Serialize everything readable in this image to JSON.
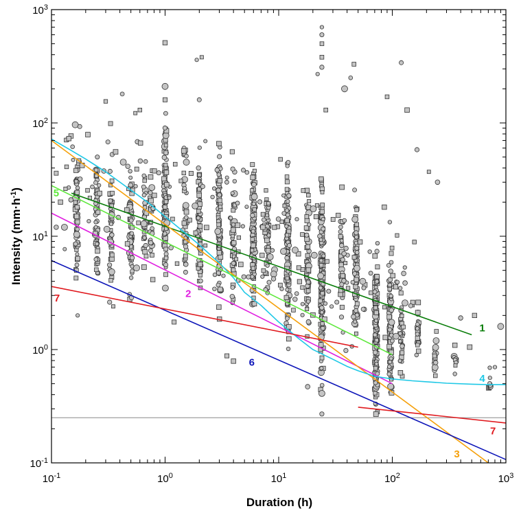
{
  "chart_data": {
    "type": "scatter",
    "xscale": "log",
    "yscale": "log",
    "xlim": [
      0.1,
      1000
    ],
    "ylim": [
      0.1,
      1000
    ],
    "xlabel": "Duration (h)",
    "ylabel": "Intensity (mm·h⁻¹)",
    "grid": false,
    "x_tick_labels": [
      {
        "value": 0.1,
        "base": "10",
        "exp": "-1"
      },
      {
        "value": 1,
        "base": "10",
        "exp": "0"
      },
      {
        "value": 10,
        "base": "10",
        "exp": "1"
      },
      {
        "value": 100,
        "base": "10",
        "exp": "2"
      },
      {
        "value": 1000,
        "base": "10",
        "exp": "3"
      }
    ],
    "y_tick_labels": [
      {
        "value": 0.1,
        "base": "10",
        "exp": "-1"
      },
      {
        "value": 1,
        "base": "10",
        "exp": "0"
      },
      {
        "value": 10,
        "base": "10",
        "exp": "1"
      },
      {
        "value": 100,
        "base": "10",
        "exp": "2"
      },
      {
        "value": 1000,
        "base": "10",
        "exp": "3"
      }
    ],
    "reference_line": {
      "y": 0.25,
      "color": "#888888"
    },
    "marker_style": {
      "fill": "#c4c4c4",
      "stroke": "#333333"
    },
    "curves": [
      {
        "id": "1",
        "label": "1",
        "color": "#0a7d0a",
        "x": [
          0.15,
          500
        ],
        "y": [
          24,
          1.35
        ],
        "label_pos": {
          "x": 620,
          "y": 1.45
        }
      },
      {
        "id": "2",
        "label": "2",
        "color": "#e01ee0",
        "x": [
          0.1,
          100
        ],
        "y": [
          16,
          0.5
        ],
        "label_pos": {
          "x": 1.6,
          "y": 2.9
        }
      },
      {
        "id": "3",
        "label": "3",
        "color": "#f5a00a",
        "x": [
          0.1,
          700
        ],
        "y": [
          70,
          0.1
        ],
        "label_pos": {
          "x": 370,
          "y": 0.112
        }
      },
      {
        "id": "4",
        "label": "4",
        "color": "#1ec8e6",
        "color_text": "#1ec8e6",
        "x": [
          0.1,
          0.15,
          0.2,
          0.3,
          0.5,
          0.7,
          1,
          1.5,
          2,
          3,
          4,
          5,
          7,
          10,
          15,
          20,
          30,
          40,
          50,
          70,
          100,
          150,
          200,
          300,
          500,
          700,
          1000
        ],
        "y": [
          72,
          57,
          48,
          37,
          25.5,
          20,
          14.9,
          10.7,
          8.4,
          5.8,
          4.3,
          3.2,
          2.45,
          1.75,
          1.25,
          1.0,
          0.82,
          0.71,
          0.65,
          0.58,
          0.55,
          0.53,
          0.52,
          0.505,
          0.495,
          0.49,
          0.49
        ],
        "label_pos": {
          "x": 620,
          "y": 0.52
        }
      },
      {
        "id": "5",
        "label": "5",
        "color": "#5ee83c",
        "x": [
          0.1,
          100
        ],
        "y": [
          28,
          0.9
        ],
        "label_pos": {
          "x": 0.11,
          "y": 22.5
        }
      },
      {
        "id": "6",
        "label": "6",
        "color": "#0c14b8",
        "x": [
          0.1,
          1000
        ],
        "y": [
          6.1,
          0.107
        ],
        "label_pos": {
          "x": 5.8,
          "y": 0.72
        }
      },
      {
        "id": "7a",
        "label": "7",
        "color": "#e0191e",
        "x": [
          0.1,
          50
        ],
        "y": [
          3.6,
          1.05
        ],
        "label_pos": {
          "x": 0.112,
          "y": 2.65
        }
      },
      {
        "id": "7b",
        "label": "7",
        "color": "#e0191e",
        "x": [
          50,
          1000
        ],
        "y": [
          0.31,
          0.225
        ],
        "label_pos": {
          "x": 770,
          "y": 0.178
        }
      }
    ],
    "columns": [
      {
        "x": 0.167,
        "ymin": 2.5,
        "ymax": 80,
        "n": 60
      },
      {
        "x": 0.25,
        "ymin": 2.8,
        "ymax": 75,
        "n": 55
      },
      {
        "x": 0.333,
        "ymin": 2.4,
        "ymax": 70,
        "n": 45
      },
      {
        "x": 0.5,
        "ymin": 2.2,
        "ymax": 70,
        "n": 55
      },
      {
        "x": 0.667,
        "ymin": 3.5,
        "ymax": 60,
        "n": 30
      },
      {
        "x": 0.75,
        "ymin": 3.0,
        "ymax": 60,
        "n": 25
      },
      {
        "x": 1.0,
        "ymin": 1.6,
        "ymax": 220,
        "n": 110
      },
      {
        "x": 1.5,
        "ymin": 2.0,
        "ymax": 100,
        "n": 40
      },
      {
        "x": 2.0,
        "ymin": 1.7,
        "ymax": 120,
        "n": 70
      },
      {
        "x": 3.0,
        "ymin": 1.5,
        "ymax": 90,
        "n": 90
      },
      {
        "x": 4.0,
        "ymin": 1.5,
        "ymax": 90,
        "n": 50
      },
      {
        "x": 6.0,
        "ymin": 1.4,
        "ymax": 80,
        "n": 110
      },
      {
        "x": 8.0,
        "ymin": 1.5,
        "ymax": 60,
        "n": 50
      },
      {
        "x": 12.0,
        "ymin": 0.8,
        "ymax": 70,
        "n": 120
      },
      {
        "x": 18.0,
        "ymin": 0.8,
        "ymax": 50,
        "n": 60
      },
      {
        "x": 24.0,
        "ymin": 0.27,
        "ymax": 60,
        "n": 150
      },
      {
        "x": 36.0,
        "ymin": 0.8,
        "ymax": 30,
        "n": 50
      },
      {
        "x": 48.0,
        "ymin": 0.7,
        "ymax": 28,
        "n": 80
      },
      {
        "x": 72.0,
        "ymin": 0.12,
        "ymax": 15,
        "n": 150
      },
      {
        "x": 96.0,
        "ymin": 0.25,
        "ymax": 8,
        "n": 80
      },
      {
        "x": 120.0,
        "ymin": 0.4,
        "ymax": 4,
        "n": 30
      },
      {
        "x": 168.0,
        "ymin": 0.6,
        "ymax": 3.5,
        "n": 25
      },
      {
        "x": 240.0,
        "ymin": 0.4,
        "ymax": 2.5,
        "n": 15
      },
      {
        "x": 360.0,
        "ymin": 0.5,
        "ymax": 1.5,
        "n": 10
      },
      {
        "x": 720.0,
        "ymin": 0.3,
        "ymax": 0.8,
        "n": 10
      }
    ],
    "scattered_points": [
      {
        "x": 1.0,
        "y": 510
      },
      {
        "x": 2.1,
        "y": 380
      },
      {
        "x": 1.9,
        "y": 360
      },
      {
        "x": 24,
        "y": 700
      },
      {
        "x": 24,
        "y": 600
      },
      {
        "x": 24,
        "y": 500
      },
      {
        "x": 24,
        "y": 380
      },
      {
        "x": 24,
        "y": 310
      },
      {
        "x": 22,
        "y": 270
      },
      {
        "x": 46,
        "y": 330
      },
      {
        "x": 43,
        "y": 250
      },
      {
        "x": 120,
        "y": 340
      },
      {
        "x": 26,
        "y": 130
      },
      {
        "x": 38,
        "y": 200
      },
      {
        "x": 0.42,
        "y": 180
      },
      {
        "x": 0.3,
        "y": 155
      },
      {
        "x": 0.6,
        "y": 130
      },
      {
        "x": 1.0,
        "y": 210
      },
      {
        "x": 1.0,
        "y": 160
      },
      {
        "x": 2.0,
        "y": 160
      },
      {
        "x": 90,
        "y": 170
      },
      {
        "x": 135,
        "y": 130
      },
      {
        "x": 250,
        "y": 30
      },
      {
        "x": 210,
        "y": 37
      },
      {
        "x": 165,
        "y": 58
      },
      {
        "x": 480,
        "y": 1.05
      },
      {
        "x": 530,
        "y": 2.0
      },
      {
        "x": 900,
        "y": 1.6
      },
      {
        "x": 400,
        "y": 1.9
      },
      {
        "x": 800,
        "y": 0.7
      },
      {
        "x": 0.11,
        "y": 36
      },
      {
        "x": 0.12,
        "y": 20
      },
      {
        "x": 0.11,
        "y": 12
      },
      {
        "x": 18,
        "y": 0.47
      },
      {
        "x": 24,
        "y": 0.41
      },
      {
        "x": 24,
        "y": 0.27
      },
      {
        "x": 3.5,
        "y": 0.88
      },
      {
        "x": 4.0,
        "y": 0.79
      },
      {
        "x": 0.17,
        "y": 2.0
      },
      {
        "x": 1.2,
        "y": 1.75
      },
      {
        "x": 0.35,
        "y": 2.4
      },
      {
        "x": 8.8,
        "y": 7.5
      }
    ]
  }
}
